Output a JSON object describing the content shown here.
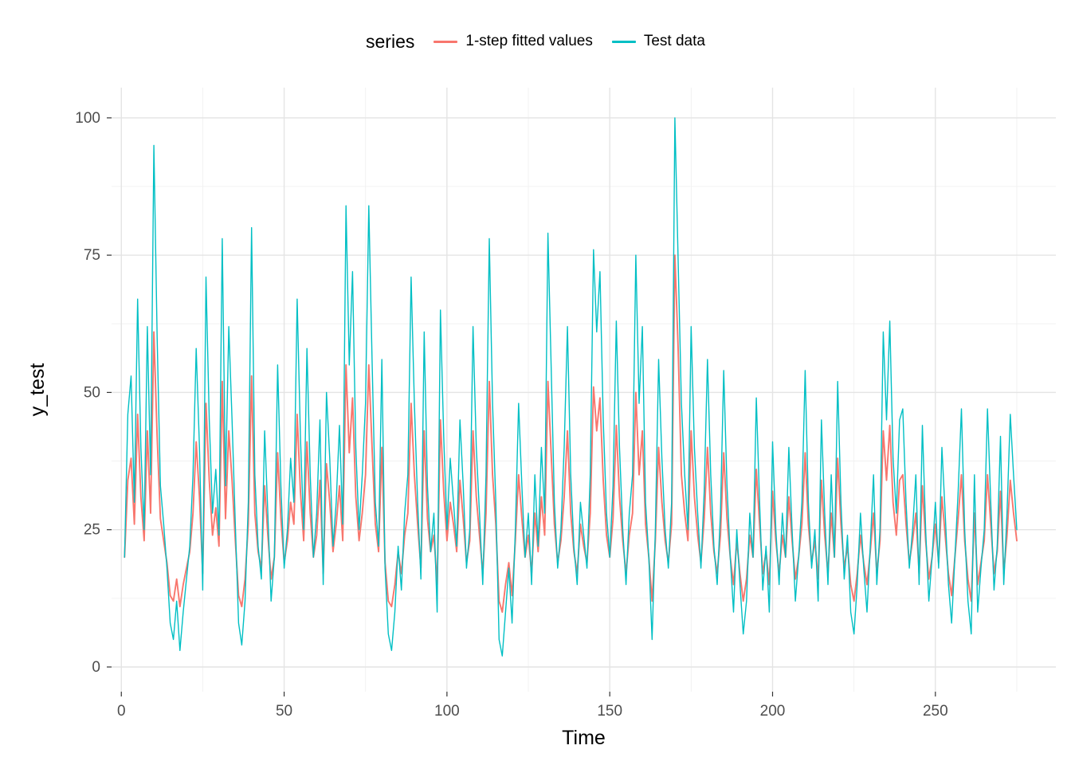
{
  "figure": {
    "background": "#FFFFFF",
    "panel_background": "#FFFFFF",
    "grid_major_color": "#E4E4E4",
    "grid_minor_color": "#EFEFEF",
    "tick_label_color": "#4D4D4D"
  },
  "legend": {
    "title": "series",
    "items": [
      {
        "label": "1-step fitted values",
        "color": "#F8766D"
      },
      {
        "label": "Test data",
        "color": "#00BFC4"
      }
    ]
  },
  "axes": {
    "x": {
      "label": "Time",
      "ticks": [
        0,
        50,
        100,
        150,
        200,
        250
      ],
      "domain": [
        -3,
        287
      ]
    },
    "y": {
      "label": "y_test",
      "ticks": [
        0,
        25,
        50,
        75,
        100
      ],
      "domain": [
        -4.5,
        105.5
      ]
    }
  },
  "chart_data": {
    "type": "line",
    "title": "",
    "xlabel": "Time",
    "ylabel": "y_test",
    "legend_position": "top",
    "grid": true,
    "xlim": [
      0,
      275
    ],
    "ylim": [
      0,
      100
    ],
    "x_start": 1,
    "x_step": 1,
    "series": [
      {
        "name": "1-step fitted values",
        "color": "#F8766D",
        "values": [
          20,
          34,
          38,
          26,
          46,
          31,
          23,
          43,
          28,
          61,
          42,
          27,
          23,
          19,
          13,
          12,
          16,
          11,
          15,
          18,
          21,
          28,
          41,
          31,
          17,
          48,
          34,
          24,
          29,
          22,
          52,
          27,
          43,
          34,
          23,
          13,
          11,
          16,
          26,
          53,
          28,
          21,
          18,
          33,
          24,
          16,
          20,
          39,
          27,
          19,
          23,
          30,
          26,
          46,
          32,
          23,
          41,
          28,
          20,
          24,
          34,
          17,
          37,
          30,
          21,
          26,
          33,
          23,
          55,
          39,
          49,
          31,
          23,
          28,
          35,
          55,
          40,
          26,
          21,
          40,
          19,
          12,
          11,
          15,
          21,
          17,
          24,
          28,
          48,
          35,
          26,
          18,
          43,
          27,
          21,
          24,
          15,
          45,
          32,
          23,
          30,
          26,
          21,
          34,
          27,
          19,
          23,
          43,
          31,
          24,
          17,
          28,
          52,
          35,
          26,
          12,
          10,
          15,
          19,
          13,
          23,
          35,
          27,
          20,
          24,
          17,
          28,
          21,
          31,
          24,
          52,
          39,
          26,
          19,
          23,
          31,
          43,
          28,
          21,
          17,
          26,
          22,
          19,
          28,
          51,
          43,
          49,
          34,
          24,
          20,
          27,
          44,
          31,
          23,
          17,
          24,
          28,
          50,
          35,
          43,
          26,
          20,
          12,
          23,
          40,
          30,
          23,
          19,
          26,
          75,
          58,
          35,
          28,
          23,
          43,
          31,
          24,
          19,
          27,
          40,
          28,
          21,
          17,
          24,
          39,
          27,
          20,
          15,
          23,
          17,
          12,
          16,
          24,
          20,
          36,
          26,
          17,
          21,
          15,
          32,
          23,
          17,
          24,
          20,
          31,
          23,
          16,
          20,
          26,
          39,
          26,
          19,
          23,
          16,
          34,
          24,
          17,
          28,
          20,
          38,
          26,
          18,
          22,
          15,
          12,
          17,
          24,
          19,
          15,
          21,
          28,
          17,
          23,
          43,
          34,
          44,
          30,
          24,
          34,
          35,
          26,
          19,
          23,
          28,
          17,
          33,
          23,
          16,
          20,
          26,
          19,
          31,
          24,
          17,
          13,
          20,
          27,
          35,
          23,
          16,
          12,
          28,
          15,
          19,
          23,
          35,
          26,
          17,
          21,
          32,
          17,
          24,
          34,
          28,
          23
        ]
      },
      {
        "name": "Test data",
        "color": "#00BFC4",
        "values": [
          20,
          46,
          53,
          30,
          67,
          40,
          25,
          62,
          35,
          95,
          60,
          33,
          26,
          18,
          8,
          5,
          12,
          3,
          10,
          16,
          22,
          35,
          58,
          40,
          14,
          71,
          45,
          28,
          36,
          24,
          78,
          33,
          62,
          45,
          26,
          8,
          4,
          12,
          30,
          80,
          35,
          22,
          16,
          43,
          28,
          12,
          20,
          55,
          33,
          18,
          25,
          38,
          30,
          67,
          42,
          25,
          58,
          35,
          20,
          28,
          45,
          15,
          50,
          38,
          22,
          30,
          44,
          26,
          84,
          55,
          72,
          40,
          25,
          35,
          48,
          84,
          56,
          30,
          22,
          56,
          18,
          6,
          3,
          10,
          22,
          14,
          28,
          35,
          71,
          48,
          30,
          16,
          61,
          33,
          21,
          28,
          10,
          65,
          42,
          25,
          38,
          30,
          22,
          45,
          33,
          18,
          25,
          62,
          40,
          28,
          15,
          35,
          78,
          48,
          30,
          5,
          2,
          10,
          18,
          8,
          25,
          48,
          33,
          20,
          28,
          15,
          35,
          22,
          40,
          28,
          79,
          55,
          30,
          18,
          25,
          40,
          62,
          35,
          22,
          15,
          30,
          24,
          18,
          35,
          76,
          61,
          72,
          45,
          28,
          20,
          33,
          63,
          40,
          25,
          15,
          28,
          35,
          75,
          48,
          62,
          30,
          20,
          5,
          25,
          56,
          38,
          25,
          18,
          30,
          100,
          74,
          48,
          35,
          25,
          62,
          40,
          28,
          18,
          32,
          56,
          35,
          22,
          15,
          28,
          54,
          33,
          20,
          10,
          25,
          15,
          6,
          12,
          28,
          20,
          49,
          30,
          14,
          22,
          10,
          41,
          25,
          15,
          28,
          20,
          40,
          25,
          12,
          20,
          30,
          54,
          30,
          18,
          25,
          12,
          45,
          28,
          15,
          35,
          20,
          52,
          30,
          16,
          24,
          10,
          6,
          15,
          28,
          18,
          10,
          22,
          35,
          15,
          25,
          61,
          45,
          63,
          38,
          28,
          45,
          47,
          30,
          18,
          25,
          35,
          15,
          44,
          25,
          12,
          20,
          30,
          18,
          40,
          28,
          15,
          8,
          20,
          32,
          47,
          25,
          12,
          6,
          35,
          10,
          18,
          25,
          47,
          30,
          14,
          22,
          42,
          15,
          28,
          46,
          35,
          25
        ]
      }
    ]
  }
}
